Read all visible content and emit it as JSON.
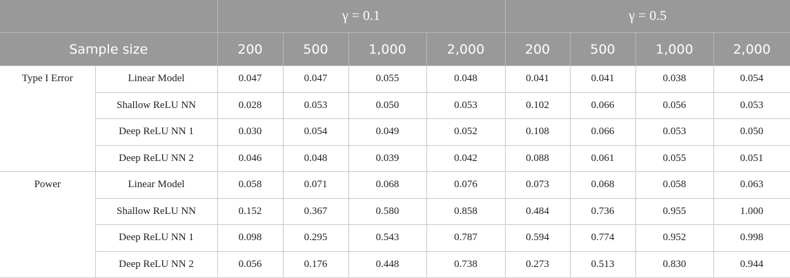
{
  "header": {
    "groups": [
      "γ = 0.1",
      "γ = 0.5"
    ],
    "row_label": "Sample size",
    "sample_sizes": [
      "200",
      "500",
      "1,000",
      "2,000",
      "200",
      "500",
      "1,000",
      "2,000"
    ]
  },
  "sections": [
    {
      "label": "Type I Error",
      "rows": [
        {
          "model": "Linear Model",
          "values": [
            "0.047",
            "0.047",
            "0.055",
            "0.048",
            "0.041",
            "0.041",
            "0.038",
            "0.054"
          ]
        },
        {
          "model": "Shallow ReLU NN",
          "values": [
            "0.028",
            "0.053",
            "0.050",
            "0.053",
            "0.102",
            "0.066",
            "0.056",
            "0.053"
          ]
        },
        {
          "model": "Deep ReLU NN 1",
          "values": [
            "0.030",
            "0.054",
            "0.049",
            "0.052",
            "0.108",
            "0.066",
            "0.053",
            "0.050"
          ]
        },
        {
          "model": "Deep ReLU NN 2",
          "values": [
            "0.046",
            "0.048",
            "0.039",
            "0.042",
            "0.088",
            "0.061",
            "0.055",
            "0.051"
          ]
        }
      ]
    },
    {
      "label": "Power",
      "rows": [
        {
          "model": "Linear Model",
          "values": [
            "0.058",
            "0.071",
            "0.068",
            "0.076",
            "0.073",
            "0.068",
            "0.058",
            "0.063"
          ]
        },
        {
          "model": "Shallow ReLU NN",
          "values": [
            "0.152",
            "0.367",
            "0.580",
            "0.858",
            "0.484",
            "0.736",
            "0.955",
            "1.000"
          ]
        },
        {
          "model": "Deep ReLU NN 1",
          "values": [
            "0.098",
            "0.295",
            "0.543",
            "0.787",
            "0.594",
            "0.774",
            "0.952",
            "0.998"
          ]
        },
        {
          "model": "Deep ReLU NN 2",
          "values": [
            "0.056",
            "0.176",
            "0.448",
            "0.738",
            "0.273",
            "0.513",
            "0.830",
            "0.944"
          ]
        }
      ]
    }
  ]
}
